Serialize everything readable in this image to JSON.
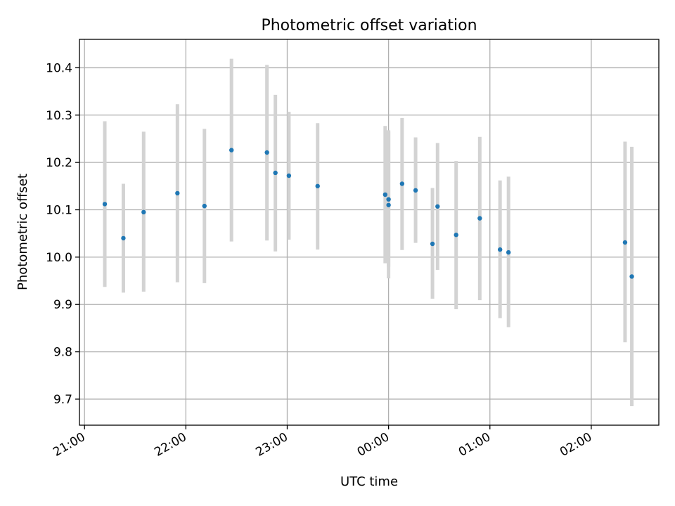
{
  "chart_data": {
    "type": "scatter",
    "title": "Photometric offset variation",
    "xlabel": "UTC time",
    "ylabel": "Photometric offset",
    "x_tick_labels": [
      "21:00",
      "22:00",
      "23:00",
      "00:00",
      "01:00",
      "02:00"
    ],
    "y_tick_labels": [
      "9.7",
      "9.8",
      "9.9",
      "10.0",
      "10.1",
      "10.2",
      "10.3",
      "10.4"
    ],
    "y_ticks": [
      9.7,
      9.8,
      9.9,
      10.0,
      10.1,
      10.2,
      10.3,
      10.4
    ],
    "xlim": [
      "20:57",
      "02:40"
    ],
    "ylim": [
      9.645,
      10.46
    ],
    "grid": true,
    "marker_color": "#1f77b4",
    "errorbar_color": "#d3d3d3",
    "points": [
      {
        "t": "21:12",
        "y": 10.112,
        "lo": 9.937,
        "hi": 10.287
      },
      {
        "t": "21:23",
        "y": 10.04,
        "lo": 9.925,
        "hi": 10.155
      },
      {
        "t": "21:35",
        "y": 10.095,
        "lo": 9.927,
        "hi": 10.265
      },
      {
        "t": "21:55",
        "y": 10.135,
        "lo": 9.947,
        "hi": 10.323
      },
      {
        "t": "22:11",
        "y": 10.108,
        "lo": 9.945,
        "hi": 10.271
      },
      {
        "t": "22:27",
        "y": 10.226,
        "lo": 10.033,
        "hi": 10.419
      },
      {
        "t": "22:48",
        "y": 10.221,
        "lo": 10.035,
        "hi": 10.406
      },
      {
        "t": "22:53",
        "y": 10.178,
        "lo": 10.012,
        "hi": 10.343
      },
      {
        "t": "23:01",
        "y": 10.172,
        "lo": 10.037,
        "hi": 10.307
      },
      {
        "t": "23:18",
        "y": 10.15,
        "lo": 10.016,
        "hi": 10.283
      },
      {
        "t": "23:58",
        "y": 10.132,
        "lo": 9.987,
        "hi": 10.277
      },
      {
        "t": "00:00",
        "y": 10.122,
        "lo": 9.98,
        "hi": 10.268
      },
      {
        "t": "00:00",
        "y": 10.11,
        "lo": 9.955,
        "hi": 10.265
      },
      {
        "t": "00:08",
        "y": 10.155,
        "lo": 10.015,
        "hi": 10.294
      },
      {
        "t": "00:16",
        "y": 10.141,
        "lo": 10.03,
        "hi": 10.253
      },
      {
        "t": "00:26",
        "y": 10.028,
        "lo": 9.912,
        "hi": 10.146
      },
      {
        "t": "00:29",
        "y": 10.107,
        "lo": 9.973,
        "hi": 10.241
      },
      {
        "t": "00:40",
        "y": 10.047,
        "lo": 9.89,
        "hi": 10.203
      },
      {
        "t": "00:54",
        "y": 10.082,
        "lo": 9.909,
        "hi": 10.254
      },
      {
        "t": "01:06",
        "y": 10.016,
        "lo": 9.871,
        "hi": 10.162
      },
      {
        "t": "01:11",
        "y": 10.01,
        "lo": 9.852,
        "hi": 10.17
      },
      {
        "t": "02:20",
        "y": 10.031,
        "lo": 9.82,
        "hi": 10.244
      },
      {
        "t": "02:24",
        "y": 9.959,
        "lo": 9.685,
        "hi": 10.233
      }
    ]
  }
}
